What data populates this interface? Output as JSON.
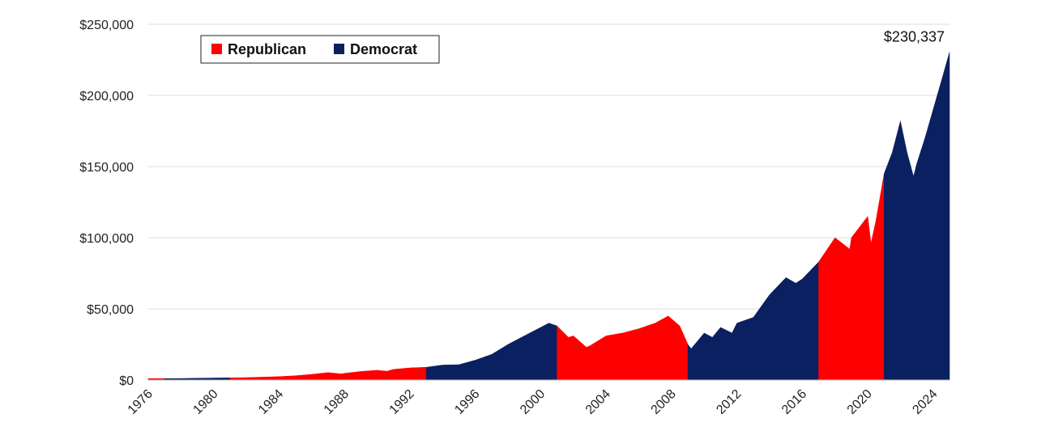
{
  "chart_data": {
    "type": "area",
    "title": "",
    "xlabel": "",
    "ylabel": "",
    "xlim": [
      1976,
      2025
    ],
    "ylim": [
      0,
      250000
    ],
    "grid": "horizontal",
    "legend_position": "top-left",
    "y_ticks": [
      {
        "value": 0,
        "label": "$0"
      },
      {
        "value": 50000,
        "label": "$50,000"
      },
      {
        "value": 100000,
        "label": "$100,000"
      },
      {
        "value": 150000,
        "label": "$150,000"
      },
      {
        "value": 200000,
        "label": "$200,000"
      },
      {
        "value": 250000,
        "label": "$250,000"
      }
    ],
    "x_ticks": [
      "1976",
      "1980",
      "1984",
      "1988",
      "1992",
      "1996",
      "2000",
      "2004",
      "2008",
      "2012",
      "2016",
      "2020",
      "2024"
    ],
    "series": [
      {
        "name": "Republican",
        "color": "#ff0000"
      },
      {
        "name": "Democrat",
        "color": "#0b2060"
      }
    ],
    "periods": [
      {
        "party": "Republican",
        "start": 1976.0,
        "end": 1977.0
      },
      {
        "party": "Democrat",
        "start": 1977.0,
        "end": 1981.0
      },
      {
        "party": "Republican",
        "start": 1981.0,
        "end": 1993.0
      },
      {
        "party": "Democrat",
        "start": 1993.0,
        "end": 2001.0
      },
      {
        "party": "Republican",
        "start": 2001.0,
        "end": 2009.0
      },
      {
        "party": "Democrat",
        "start": 2009.0,
        "end": 2017.0
      },
      {
        "party": "Republican",
        "start": 2017.0,
        "end": 2021.0
      },
      {
        "party": "Democrat",
        "start": 2021.0,
        "end": 2025.0
      }
    ],
    "values": [
      [
        1976.0,
        1000
      ],
      [
        1978.0,
        1100
      ],
      [
        1980.0,
        1400
      ],
      [
        1982.0,
        1700
      ],
      [
        1984.0,
        2400
      ],
      [
        1985.0,
        3000
      ],
      [
        1986.0,
        4000
      ],
      [
        1987.0,
        5200
      ],
      [
        1987.8,
        4300
      ],
      [
        1988.0,
        4700
      ],
      [
        1989.0,
        6000
      ],
      [
        1990.0,
        6900
      ],
      [
        1990.6,
        6200
      ],
      [
        1991.0,
        7500
      ],
      [
        1992.0,
        8500
      ],
      [
        1993.0,
        9000
      ],
      [
        1994.0,
        10500
      ],
      [
        1995.0,
        10800
      ],
      [
        1996.0,
        14000
      ],
      [
        1997.0,
        18000
      ],
      [
        1998.0,
        25000
      ],
      [
        1999.0,
        31000
      ],
      [
        2000.0,
        37000
      ],
      [
        2000.5,
        40000
      ],
      [
        2001.0,
        38000
      ],
      [
        2001.7,
        30000
      ],
      [
        2002.0,
        31000
      ],
      [
        2002.8,
        23000
      ],
      [
        2003.0,
        24000
      ],
      [
        2004.0,
        31000
      ],
      [
        2005.0,
        33000
      ],
      [
        2006.0,
        36000
      ],
      [
        2007.0,
        40000
      ],
      [
        2007.8,
        45000
      ],
      [
        2008.0,
        43000
      ],
      [
        2008.5,
        38000
      ],
      [
        2009.0,
        25000
      ],
      [
        2009.2,
        22000
      ],
      [
        2010.0,
        33000
      ],
      [
        2010.5,
        30000
      ],
      [
        2011.0,
        37000
      ],
      [
        2011.7,
        33000
      ],
      [
        2012.0,
        40000
      ],
      [
        2013.0,
        44000
      ],
      [
        2014.0,
        60000
      ],
      [
        2015.0,
        72000
      ],
      [
        2015.6,
        68000
      ],
      [
        2016.0,
        71000
      ],
      [
        2017.0,
        83000
      ],
      [
        2018.0,
        100000
      ],
      [
        2018.9,
        92000
      ],
      [
        2019.0,
        100000
      ],
      [
        2020.0,
        115000
      ],
      [
        2020.2,
        96000
      ],
      [
        2020.5,
        112000
      ],
      [
        2021.0,
        145000
      ],
      [
        2021.5,
        160000
      ],
      [
        2022.0,
        182000
      ],
      [
        2022.4,
        160000
      ],
      [
        2022.8,
        143000
      ],
      [
        2023.0,
        152000
      ],
      [
        2023.5,
        170000
      ],
      [
        2024.0,
        190000
      ],
      [
        2024.5,
        210000
      ],
      [
        2025.0,
        230337
      ]
    ],
    "annotations": [
      {
        "text": "$230,337",
        "x": 2025.0,
        "y": 230337
      }
    ]
  },
  "legend": [
    {
      "label": "Republican",
      "color": "#ff0000"
    },
    {
      "label": "Democrat",
      "color": "#0b2060"
    }
  ],
  "colors": {
    "republican": "#ff0000",
    "democrat": "#0b2060",
    "grid": "#dcdcdc"
  }
}
